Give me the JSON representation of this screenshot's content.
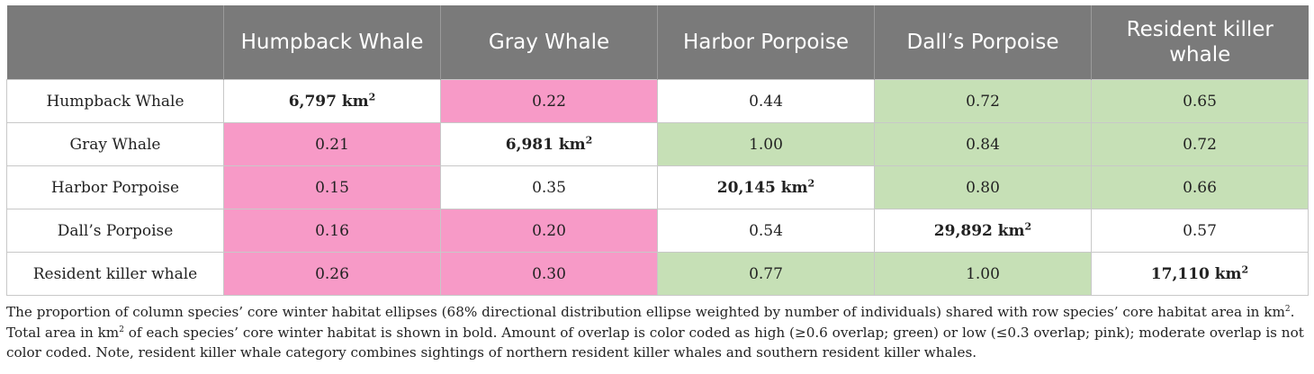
{
  "table": {
    "columns": [
      "",
      "Humpback Whale",
      "Gray Whale",
      "Harbor Porpoise",
      "Dall’s Porpoise",
      "Resident killer whale"
    ],
    "rows": [
      {
        "label": "Humpback Whale",
        "cells": [
          {
            "value": "6,797 km",
            "sup": "2",
            "type": "diag"
          },
          {
            "value": "0.22",
            "type": "low"
          },
          {
            "value": "0.44",
            "type": "mod"
          },
          {
            "value": "0.72",
            "type": "high"
          },
          {
            "value": "0.65",
            "type": "high"
          }
        ]
      },
      {
        "label": "Gray Whale",
        "cells": [
          {
            "value": "0.21",
            "type": "low"
          },
          {
            "value": "6,981 km",
            "sup": "2",
            "type": "diag"
          },
          {
            "value": "1.00",
            "type": "high"
          },
          {
            "value": "0.84",
            "type": "high"
          },
          {
            "value": "0.72",
            "type": "high"
          }
        ]
      },
      {
        "label": "Harbor Porpoise",
        "cells": [
          {
            "value": "0.15",
            "type": "low"
          },
          {
            "value": "0.35",
            "type": "mod"
          },
          {
            "value": "20,145 km",
            "sup": "2",
            "type": "diag"
          },
          {
            "value": "0.80",
            "type": "high"
          },
          {
            "value": "0.66",
            "type": "high"
          }
        ]
      },
      {
        "label": "Dall’s Porpoise",
        "cells": [
          {
            "value": "0.16",
            "type": "low"
          },
          {
            "value": "0.20",
            "type": "low"
          },
          {
            "value": "0.54",
            "type": "mod"
          },
          {
            "value": "29,892 km",
            "sup": "2",
            "type": "diag"
          },
          {
            "value": "0.57",
            "type": "mod"
          }
        ]
      },
      {
        "label": "Resident killer whale",
        "cells": [
          {
            "value": "0.26",
            "type": "low"
          },
          {
            "value": "0.30",
            "type": "low"
          },
          {
            "value": "0.77",
            "type": "high"
          },
          {
            "value": "1.00",
            "type": "high"
          },
          {
            "value": "17,110 km",
            "sup": "2",
            "type": "diag"
          }
        ]
      }
    ]
  },
  "colors": {
    "header_bg": "#7a7a7a",
    "high_overlap": "#c6e0b6",
    "low_overlap": "#f79ac7"
  },
  "caption": {
    "p1": "The proportion of column species’ core winter habitat ellipses (68% directional distribution ellipse weighted by number of individuals) shared with row species’ core habitat area in km",
    "p1_sup": "2",
    "p2": ". Total area in km",
    "p2_sup": "2",
    "p3": " of each species’ core winter habitat is shown in bold. Amount of overlap is color coded as high (≥0.6 overlap; green) or low (≤0.3 overlap; pink); moderate overlap is not color coded. Note, resident killer whale category combines sightings of northern resident killer whales and southern resident killer whales."
  }
}
